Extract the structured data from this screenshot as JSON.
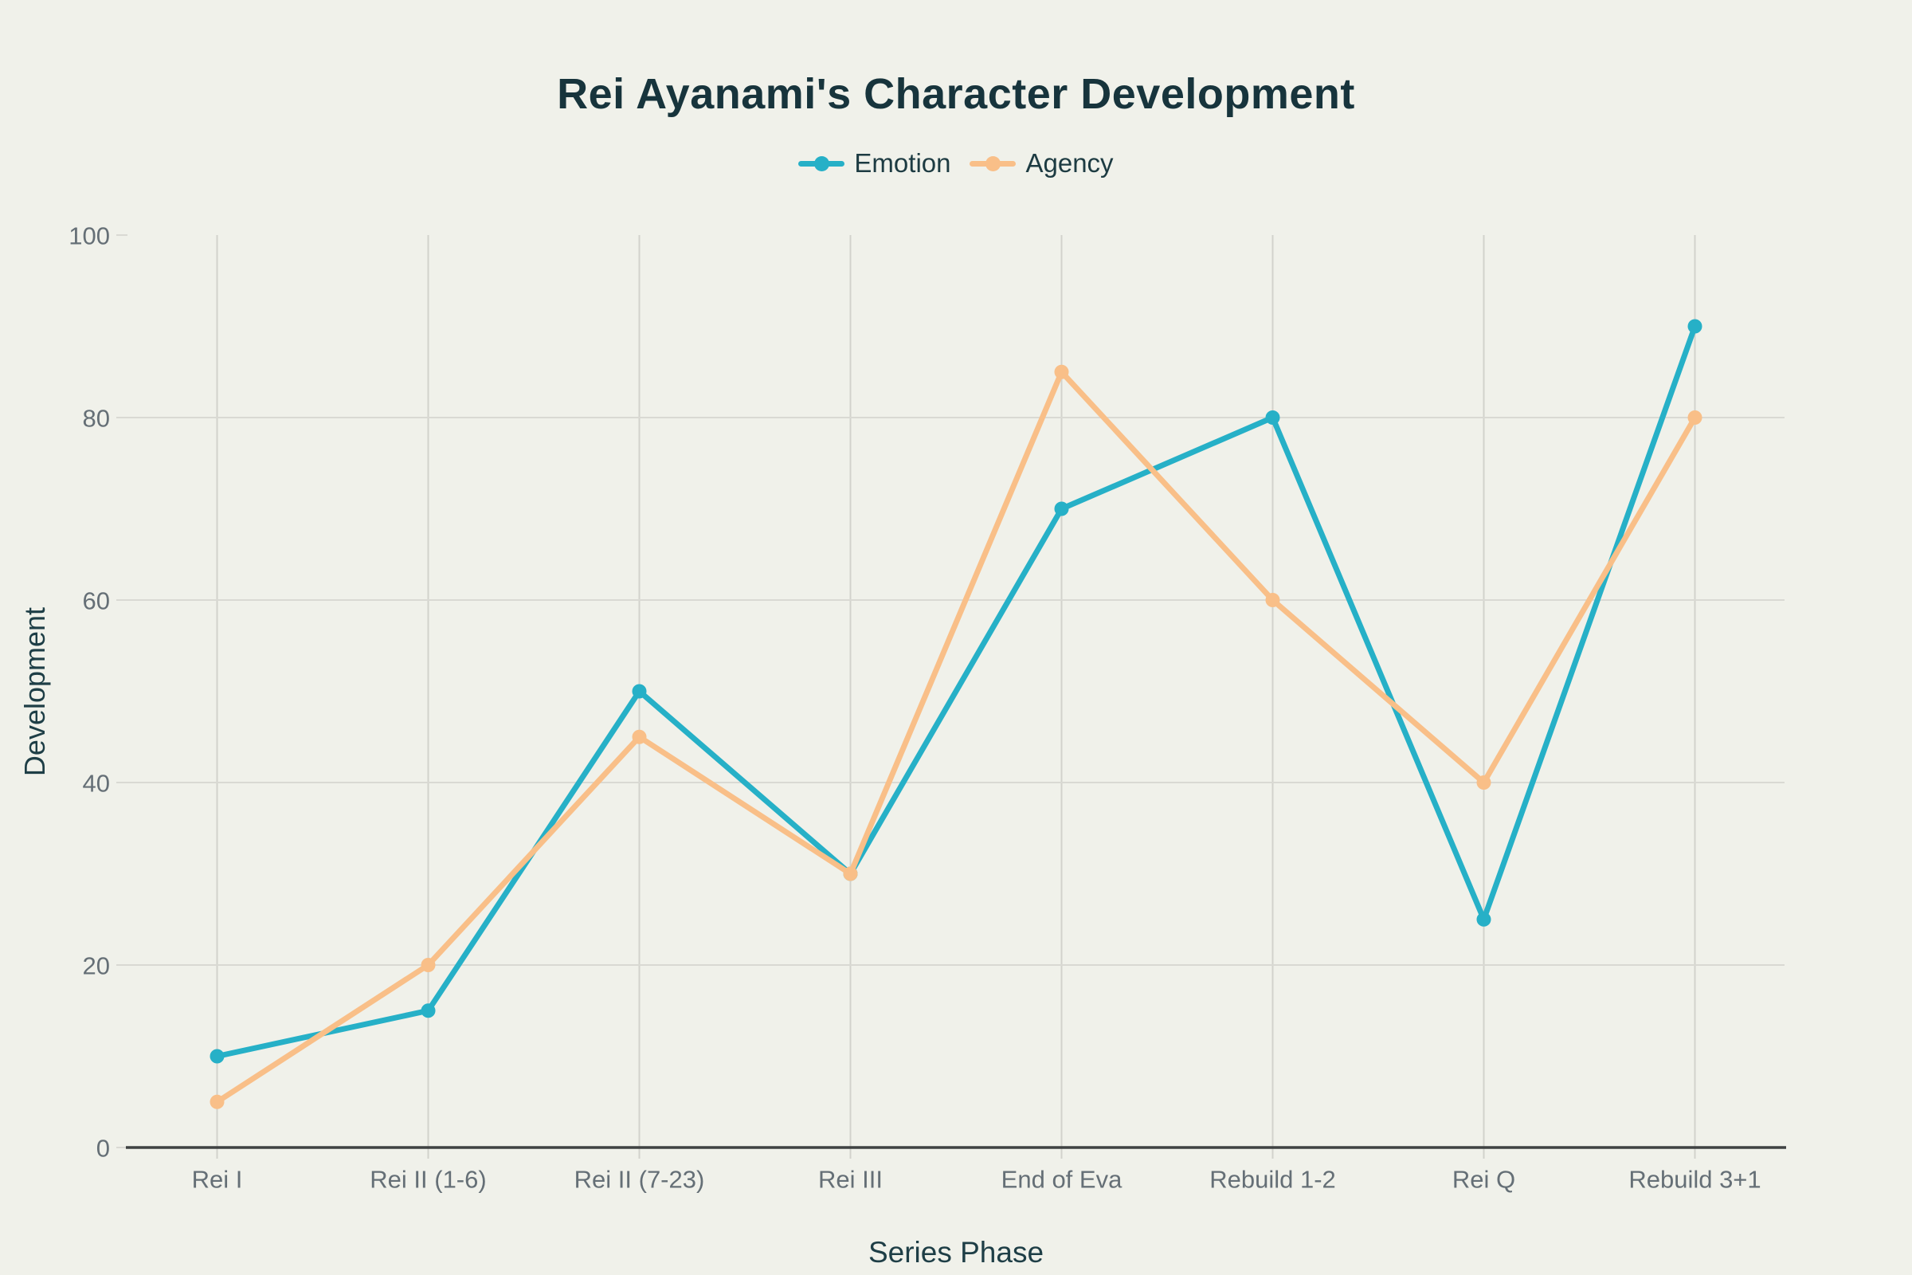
{
  "chart_data": {
    "type": "line",
    "title": "Rei Ayanami's Character Development",
    "xlabel": "Series Phase",
    "ylabel": "Development",
    "categories": [
      "Rei I",
      "Rei II (1-6)",
      "Rei II (7-23)",
      "Rei III",
      "End of Eva",
      "Rebuild 1-2",
      "Rei Q",
      "Rebuild 3+1"
    ],
    "series": [
      {
        "name": "Emotion",
        "color": "#26b0c7",
        "values": [
          10,
          15,
          50,
          30,
          70,
          80,
          25,
          90
        ]
      },
      {
        "name": "Agency",
        "color": "#f9bf88",
        "values": [
          5,
          20,
          45,
          30,
          85,
          60,
          40,
          80
        ]
      }
    ],
    "y_ticks": [
      0,
      20,
      40,
      60,
      80,
      100
    ],
    "ylim": [
      0,
      100
    ],
    "grid": {
      "horizontal": true,
      "vertical": true
    },
    "legend_position": "top-center"
  },
  "colors": {
    "background": "#f0f1ea",
    "title": "#17343c",
    "axis_title": "#1e3e46",
    "tick_label": "#656f76",
    "legend_text": "#1d3b42",
    "axis_line": "#3f4242",
    "gridline_vertical": "#d2d2cc",
    "gridline_horizontal": "#d9d9d3"
  }
}
